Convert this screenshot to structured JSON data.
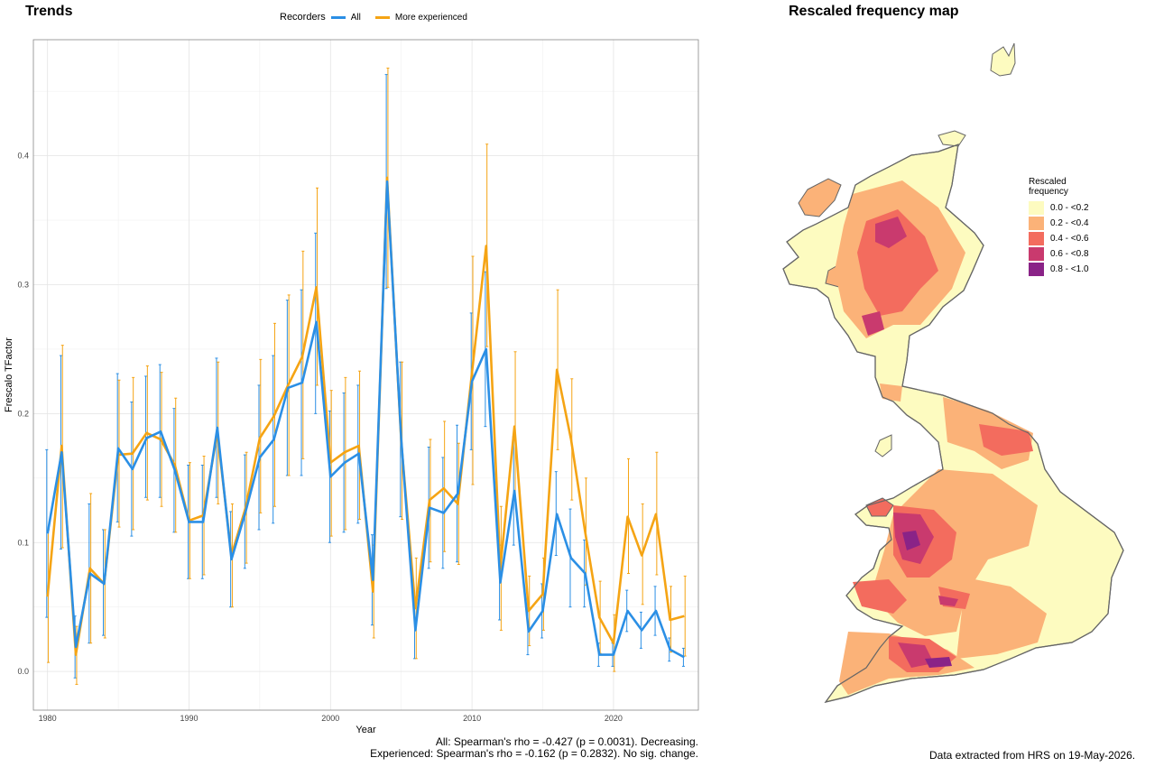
{
  "trends": {
    "title": "Trends",
    "legend_title": "Recorders",
    "footnote_all": "All: Spearman's rho = -0.427 (p = 0.0031). Decreasing.",
    "footnote_exp": "Experienced: Spearman's rho = -0.162 (p = 0.2832). No sig. change."
  },
  "map": {
    "title": "Rescaled frequency map",
    "legend_title_1": "Rescaled",
    "legend_title_2": "frequency",
    "legend_items": [
      {
        "label": "0.0 - <0.2",
        "color": "#fdfbc0"
      },
      {
        "label": "0.2 - <0.4",
        "color": "#fbb278"
      },
      {
        "label": "0.4 - <0.6",
        "color": "#f36c5e"
      },
      {
        "label": "0.6 - <0.8",
        "color": "#c93a6e"
      },
      {
        "label": "0.8 - <1.0",
        "color": "#8a2387"
      }
    ],
    "credit": "Data extracted from HRS on 19-May-2026."
  },
  "chart_data": {
    "type": "line",
    "title": "Trends",
    "xlabel": "Year",
    "ylabel": "Frescalo TFactor",
    "xlim": [
      1979,
      2026
    ],
    "ylim": [
      -0.03,
      0.49
    ],
    "x_ticks": [
      1980,
      1990,
      2000,
      2010,
      2020
    ],
    "y_ticks": [
      0.0,
      0.1,
      0.2,
      0.3,
      0.4
    ],
    "grid": true,
    "legend": "top",
    "x": [
      1980,
      1981,
      1982,
      1983,
      1984,
      1985,
      1986,
      1987,
      1988,
      1989,
      1990,
      1991,
      1992,
      1993,
      1994,
      1995,
      1996,
      1997,
      1998,
      1999,
      2000,
      2001,
      2002,
      2003,
      2004,
      2005,
      2006,
      2007,
      2008,
      2009,
      2010,
      2011,
      2012,
      2013,
      2014,
      2015,
      2016,
      2017,
      2018,
      2019,
      2020,
      2021,
      2022,
      2023,
      2024,
      2025
    ],
    "series": [
      {
        "name": "All",
        "color": "#2b8fe5",
        "values": [
          0.107,
          0.17,
          0.019,
          0.076,
          0.068,
          0.173,
          0.157,
          0.181,
          0.186,
          0.156,
          0.116,
          0.116,
          0.189,
          0.087,
          0.124,
          0.166,
          0.18,
          0.22,
          0.224,
          0.271,
          0.151,
          0.162,
          0.169,
          0.071,
          0.38,
          0.18,
          0.032,
          0.127,
          0.123,
          0.138,
          0.225,
          0.25,
          0.069,
          0.14,
          0.031,
          0.047,
          0.122,
          0.088,
          0.076,
          0.013,
          0.013,
          0.047,
          0.032,
          0.047,
          0.017,
          0.011
        ],
        "lower": [
          0.042,
          0.095,
          -0.005,
          0.022,
          0.028,
          0.116,
          0.105,
          0.135,
          0.135,
          0.108,
          0.072,
          0.072,
          0.135,
          0.05,
          0.08,
          0.11,
          0.115,
          0.152,
          0.152,
          0.2,
          0.1,
          0.108,
          0.115,
          0.036,
          0.297,
          0.12,
          0.01,
          0.08,
          0.08,
          0.085,
          0.172,
          0.19,
          0.04,
          0.098,
          0.013,
          0.026,
          0.09,
          0.05,
          0.05,
          0.004,
          0.004,
          0.031,
          0.018,
          0.028,
          0.008,
          0.004
        ],
        "upper": [
          0.172,
          0.245,
          0.043,
          0.13,
          0.11,
          0.231,
          0.209,
          0.229,
          0.238,
          0.204,
          0.16,
          0.16,
          0.243,
          0.124,
          0.168,
          0.222,
          0.245,
          0.288,
          0.296,
          0.34,
          0.202,
          0.216,
          0.222,
          0.106,
          0.463,
          0.24,
          0.054,
          0.174,
          0.166,
          0.191,
          0.278,
          0.31,
          0.098,
          0.182,
          0.049,
          0.068,
          0.155,
          0.126,
          0.102,
          0.022,
          0.022,
          0.063,
          0.046,
          0.066,
          0.026,
          0.018
        ]
      },
      {
        "name": "More experienced",
        "color": "#f5a414",
        "values": [
          0.058,
          0.175,
          0.013,
          0.08,
          0.068,
          0.168,
          0.169,
          0.185,
          0.18,
          0.16,
          0.117,
          0.121,
          0.185,
          0.09,
          0.127,
          0.181,
          0.198,
          0.222,
          0.244,
          0.298,
          0.162,
          0.17,
          0.175,
          0.062,
          0.383,
          0.178,
          0.049,
          0.133,
          0.142,
          0.13,
          0.232,
          0.33,
          0.08,
          0.19,
          0.047,
          0.06,
          0.234,
          0.18,
          0.108,
          0.042,
          0.022,
          0.12,
          0.09,
          0.122,
          0.04,
          0.043
        ],
        "lower": [
          0.007,
          0.096,
          -0.01,
          0.022,
          0.026,
          0.112,
          0.11,
          0.133,
          0.128,
          0.108,
          0.072,
          0.075,
          0.13,
          0.05,
          0.084,
          0.123,
          0.128,
          0.152,
          0.165,
          0.222,
          0.105,
          0.11,
          0.118,
          0.026,
          0.298,
          0.118,
          0.01,
          0.085,
          0.093,
          0.083,
          0.145,
          0.252,
          0.032,
          0.133,
          0.02,
          0.032,
          0.172,
          0.133,
          0.067,
          0.014,
          0.0,
          0.076,
          0.052,
          0.075,
          0.015,
          0.012
        ],
        "upper": [
          0.11,
          0.253,
          0.035,
          0.138,
          0.11,
          0.226,
          0.228,
          0.237,
          0.232,
          0.212,
          0.162,
          0.167,
          0.24,
          0.13,
          0.17,
          0.242,
          0.27,
          0.292,
          0.326,
          0.375,
          0.218,
          0.228,
          0.233,
          0.098,
          0.468,
          0.24,
          0.088,
          0.18,
          0.194,
          0.177,
          0.322,
          0.409,
          0.128,
          0.248,
          0.074,
          0.088,
          0.296,
          0.227,
          0.15,
          0.07,
          0.044,
          0.165,
          0.13,
          0.17,
          0.066,
          0.074
        ]
      }
    ]
  }
}
